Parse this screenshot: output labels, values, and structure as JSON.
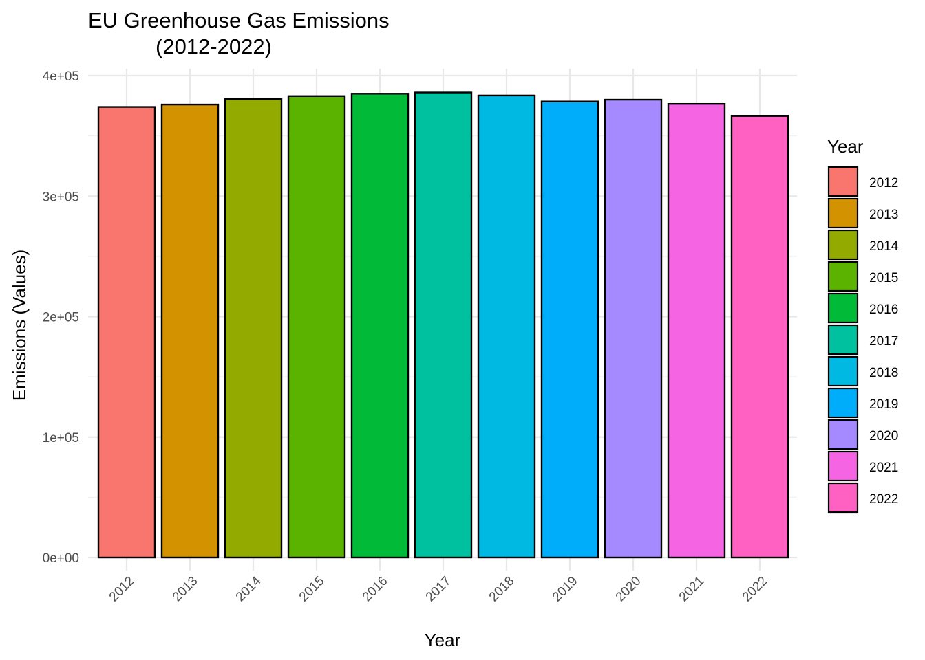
{
  "chart_data": {
    "type": "bar",
    "title_lines": [
      "EU Greenhouse Gas Emissions",
      "(2012-2022)"
    ],
    "xlabel": "Year",
    "ylabel": "Emissions (Values)",
    "categories": [
      "2012",
      "2013",
      "2014",
      "2015",
      "2016",
      "2017",
      "2018",
      "2019",
      "2020",
      "2021",
      "2022"
    ],
    "values": [
      374000,
      376000,
      380500,
      383000,
      385000,
      386000,
      383500,
      378500,
      380000,
      376500,
      366500
    ],
    "colors": [
      "#F8766D",
      "#D39200",
      "#93AA00",
      "#5BB300",
      "#00BA38",
      "#00C19F",
      "#00B9E3",
      "#00ADFA",
      "#A58AFF",
      "#F564E3",
      "#FF61C3"
    ],
    "ylim": [
      0,
      400000
    ],
    "yticks": [
      0,
      100000,
      200000,
      300000,
      400000
    ],
    "ytick_labels": [
      "0e+00",
      "1e+05",
      "2e+05",
      "3e+05",
      "4e+05"
    ],
    "grid": true,
    "legend": {
      "title": "Year",
      "position": "right"
    }
  }
}
